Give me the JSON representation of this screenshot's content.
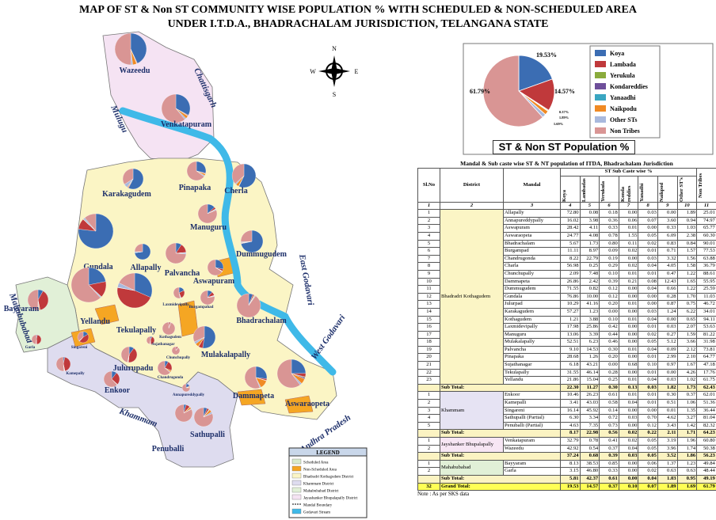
{
  "title": [
    "MAP OF ST & Non ST COMMUNITY WISE POPULATION % WITH SCHEDULED & NON-SCHEDULED AREA",
    "UNDER I.T.D.A., BHADRACHALAM JURISDICTION, TELANGANA STATE"
  ],
  "map": {
    "compass": [
      "N",
      "E",
      "S",
      "W"
    ],
    "regions": [
      "Chattisgarh",
      "Mulugu",
      "East Godavari",
      "West Godavari",
      "Mahabubabad",
      "Khammam",
      "Andhra Pradesh"
    ],
    "mandals": [
      "Wazeedu",
      "Venkatapuram",
      "Karakagudem",
      "Pinapaka",
      "Cherla",
      "Manuguru",
      "Gundala",
      "Allapally",
      "Dummugudem",
      "Palvancha",
      "Aswapuram",
      "Laxmidevipally",
      "Yellandu",
      "Tekulapally",
      "Burgampahad",
      "Bhadrachalam",
      "Bayyaram",
      "Garla",
      "Singareni",
      "Sujathanagar",
      "Kothagudem",
      "Chunchupally",
      "Mulakalapally",
      "Kamepally",
      "Julurupadu",
      "Chandrugonda",
      "Enkoor",
      "Annapureddypally",
      "Dammapeta",
      "Aswaraopeta",
      "Sathupalli",
      "Penuballi"
    ],
    "legend": {
      "title": "LEGEND",
      "items": [
        "Scheduled Area",
        "Non-Scheduled Area",
        "Bhadradri Kothagudem District",
        "Khammam District",
        "Mahabubabad District",
        "Jayashanker Bhupalapally District",
        "Mandal Boundary",
        "Godavari Stream"
      ]
    }
  },
  "chart_data": {
    "type": "pie",
    "title": "ST & Non ST Population %",
    "categories": [
      "Koya",
      "Lambada",
      "Yerukula",
      "Kondareddies",
      "Yanaadhi",
      "Naikpodu",
      "Other STs",
      "Non Tribes"
    ],
    "values": [
      19.53,
      14.57,
      0.37,
      0.1,
      0.07,
      1.89,
      1.69,
      61.79
    ],
    "value_labels": [
      "19.53%",
      "14.57%",
      "0.37%",
      null,
      null,
      "1.89%",
      "1.69%",
      "61.79%"
    ],
    "colors": [
      "#3b6db3",
      "#c0393b",
      "#8aab3c",
      "#6e4f9a",
      "#3aa6c1",
      "#f08a24",
      "#a9b9dd",
      "#d99594"
    ]
  },
  "table": {
    "title": "Mandal & Sub caste wise ST & NT population of  ITDA, Bhadrachalam Jurisdiction",
    "columns": [
      "Sl.No",
      "District",
      "Mandal",
      "Koya",
      "Lambadas",
      "Yerukula",
      "Konda reddies",
      "Yanadhi",
      "Naikpod",
      "Other ST's",
      "Non Tribes"
    ],
    "header_group": "ST Sub Caste wise %",
    "column_numbers": [
      1,
      2,
      3,
      4,
      5,
      6,
      7,
      8,
      9,
      10,
      11
    ],
    "groups": [
      {
        "district": "Bhadradri Kothagudem",
        "rows": [
          [
            1,
            "Allapally",
            "72.80",
            "0.08",
            "0.18",
            "0.00",
            "0.03",
            "0.00",
            "1.89",
            "25.01"
          ],
          [
            2,
            "Annapureddypally",
            "16.02",
            "3.98",
            "0.36",
            "0.06",
            "0.07",
            "3.60",
            "0.94",
            "74.97"
          ],
          [
            3,
            "Aswapuram",
            "28.42",
            "4.11",
            "0.33",
            "0.01",
            "0.00",
            "0.33",
            "1.03",
            "65.77"
          ],
          [
            4,
            "Aswaraopeta",
            "24.77",
            "4.08",
            "0.78",
            "1.55",
            "0.05",
            "6.09",
            "2.38",
            "60.30"
          ],
          [
            5,
            "Bhadrachalam",
            "5.67",
            "1.73",
            "0.80",
            "0.11",
            "0.02",
            "0.83",
            "0.84",
            "90.01"
          ],
          [
            6,
            "Burgampad",
            "11.11",
            "8.97",
            "0.09",
            "0.02",
            "0.01",
            "0.71",
            "1.57",
            "77.53"
          ],
          [
            7,
            "Chandrugonda",
            "8.22",
            "22.79",
            "0.19",
            "0.00",
            "0.03",
            "3.32",
            "1.56",
            "63.88"
          ],
          [
            8,
            "Charla",
            "56.98",
            "0.25",
            "0.29",
            "0.02",
            "0.04",
            "4.05",
            "1.58",
            "36.79"
          ],
          [
            9,
            "Chunchupally",
            "2.09",
            "7.48",
            "0.10",
            "0.01",
            "0.01",
            "0.47",
            "1.22",
            "88.61"
          ],
          [
            10,
            "Dammapeta",
            "26.86",
            "2.42",
            "0.39",
            "0.21",
            "0.08",
            "12.43",
            "1.65",
            "55.95"
          ],
          [
            11,
            "Dummugudem",
            "71.55",
            "0.82",
            "0.12",
            "0.00",
            "0.04",
            "0.66",
            "1.22",
            "25.59"
          ],
          [
            12,
            "Gundala",
            "76.86",
            "10.00",
            "0.12",
            "0.00",
            "0.00",
            "0.28",
            "1.70",
            "11.03"
          ],
          [
            13,
            "Julurpad",
            "10.29",
            "41.16",
            "0.20",
            "0.01",
            "0.00",
            "0.87",
            "0.75",
            "46.72"
          ],
          [
            14,
            "Karakagudem",
            "57.27",
            "1.23",
            "0.00",
            "0.00",
            "0.03",
            "1.24",
            "6.22",
            "34.01"
          ],
          [
            15,
            "Kothagudem",
            "1.21",
            "3.88",
            "0.10",
            "0.01",
            "0.04",
            "0.00",
            "0.65",
            "94.11"
          ],
          [
            16,
            "Laxmidevipally",
            "17.98",
            "25.86",
            "0.42",
            "0.00",
            "0.01",
            "0.03",
            "2.07",
            "53.63"
          ],
          [
            17,
            "Manuguru",
            "13.06",
            "3.39",
            "0.44",
            "0.00",
            "0.02",
            "0.27",
            "1.59",
            "81.22"
          ],
          [
            18,
            "Mulakalapally",
            "52.51",
            "6.23",
            "0.46",
            "0.00",
            "0.05",
            "5.12",
            "3.66",
            "31.98"
          ],
          [
            19,
            "Palvancha",
            "9.10",
            "14.53",
            "0.30",
            "0.01",
            "0.04",
            "0.09",
            "2.12",
            "73.81"
          ],
          [
            20,
            "Pinapaka",
            "28.68",
            "1.26",
            "0.20",
            "0.00",
            "0.01",
            "2.99",
            "2.10",
            "64.77"
          ],
          [
            21,
            "Sujathanagar",
            "6.18",
            "43.21",
            "0.00",
            "0.68",
            "0.10",
            "0.97",
            "1.67",
            "47.18"
          ],
          [
            22,
            "Tekulapally",
            "31.55",
            "46.14",
            "0.28",
            "0.00",
            "0.01",
            "0.00",
            "4.26",
            "17.76"
          ],
          [
            23,
            "Yellandu",
            "21.86",
            "15.04",
            "0.25",
            "0.01",
            "0.04",
            "0.03",
            "1.02",
            "61.75"
          ]
        ],
        "subtotal": {
          "label": "Sub Total:",
          "values": [
            "22.30",
            "11.27",
            "0.30",
            "0.13",
            "0.03",
            "1.82",
            "1.73",
            "62.43"
          ]
        }
      },
      {
        "district": "Khammam",
        "rows": [
          [
            1,
            "Enkoor",
            "10.46",
            "26.23",
            "0.61",
            "0.01",
            "0.01",
            "0.30",
            "0.37",
            "62.01"
          ],
          [
            2,
            "Kamepalli",
            "3.41",
            "43.03",
            "0.58",
            "0.04",
            "0.01",
            "0.51",
            "1.06",
            "51.36"
          ],
          [
            3,
            "Singareni",
            "16.14",
            "45.92",
            "0.14",
            "0.00",
            "0.00",
            "0.01",
            "1.35",
            "36.44"
          ],
          [
            4,
            "Sathupalli (Partial)",
            "6.30",
            "3.34",
            "0.72",
            "0.03",
            "0.70",
            "4.62",
            "3.27",
            "81.04"
          ],
          [
            5,
            "Penuballi (Partial)",
            "4.63",
            "7.35",
            "0.73",
            "0.00",
            "0.12",
            "3.43",
            "1.42",
            "82.32"
          ]
        ],
        "subtotal": {
          "label": "Sub Total:",
          "values": [
            "8.17",
            "22.98",
            "0.56",
            "0.02",
            "0.22",
            "2.11",
            "1.71",
            "64.23"
          ]
        }
      },
      {
        "district": "Jayshanker Bhupalapally",
        "rows": [
          [
            1,
            "Venkatapuram",
            "32.79",
            "0.78",
            "0.41",
            "0.02",
            "0.05",
            "3.19",
            "1.96",
            "60.80"
          ],
          [
            2,
            "Wazeedu",
            "42.92",
            "0.54",
            "0.37",
            "0.04",
            "0.05",
            "3.96",
            "1.74",
            "50.38"
          ]
        ],
        "subtotal": {
          "label": "Sub Total:",
          "values": [
            "37.24",
            "0.68",
            "0.39",
            "0.03",
            "0.05",
            "3.52",
            "1.86",
            "56.23"
          ]
        }
      },
      {
        "district": "Mahabubabad",
        "rows": [
          [
            1,
            "Bayyaram",
            "8.13",
            "38.53",
            "0.85",
            "0.00",
            "0.06",
            "1.37",
            "1.23",
            "49.84"
          ],
          [
            2,
            "Garla",
            "3.15",
            "46.80",
            "0.33",
            "0.00",
            "0.02",
            "0.63",
            "0.63",
            "48.44"
          ]
        ],
        "subtotal": {
          "label": "Sub Total:",
          "values": [
            "5.81",
            "42.37",
            "0.61",
            "0.00",
            "0.04",
            "1.03",
            "0.95",
            "49.19"
          ]
        }
      }
    ],
    "grand_total": {
      "sl": 32,
      "label": "Grand Total:",
      "values": [
        "19.53",
        "14.57",
        "0.37",
        "0.10",
        "0.07",
        "1.89",
        "1.69",
        "61.79"
      ]
    },
    "note": "Note :   As per SKS data"
  }
}
